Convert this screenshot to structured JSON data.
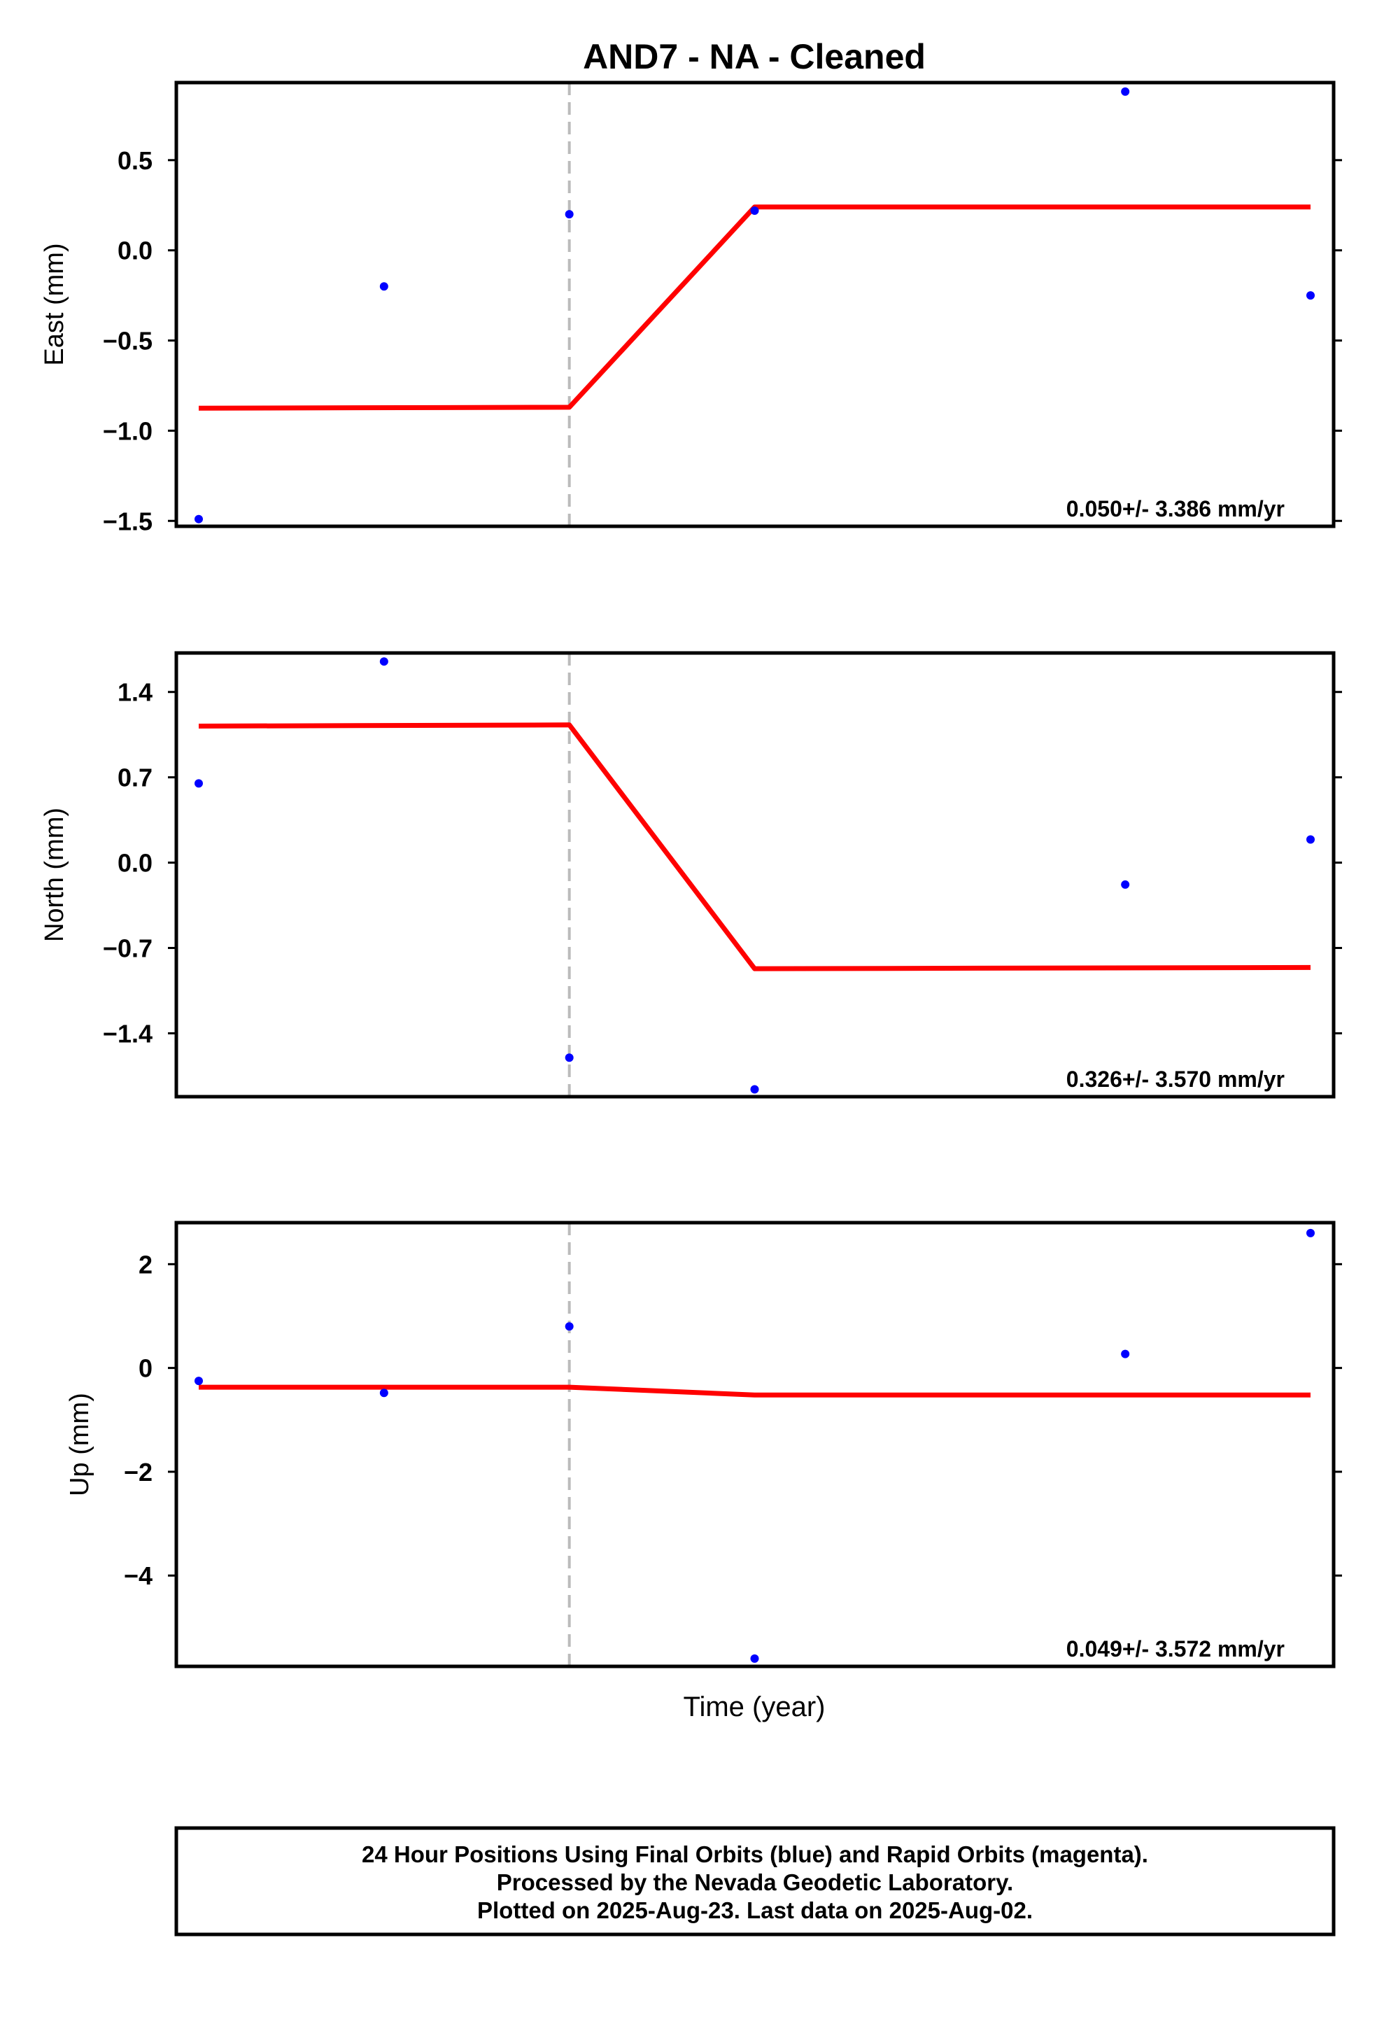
{
  "chart_data": {
    "type": "scatter",
    "title": "AND7  - NA - Cleaned",
    "xlabel": "Time (year)",
    "xlim": [
      0,
      6.2
    ],
    "event_line_x": 2.0,
    "colors": {
      "points": "#0000ff",
      "fit": "#ff0000",
      "event": "#bbbbbb",
      "frame": "#000000"
    },
    "panels": [
      {
        "name": "east",
        "ylabel": "East (mm)",
        "ylim": [
          -1.53,
          0.93
        ],
        "ticks": [
          0.5,
          0.0,
          -0.5,
          -1.0,
          -1.5
        ],
        "tick_labels": [
          "0.5",
          "0.0",
          "−0.5",
          "−1.0",
          "−1.5"
        ],
        "rate_text": "0.050+/- 3.386 mm/yr",
        "points": [
          {
            "x": 0.0,
            "y": -1.49
          },
          {
            "x": 1.0,
            "y": -0.2
          },
          {
            "x": 2.0,
            "y": 0.2
          },
          {
            "x": 3.0,
            "y": 0.22
          },
          {
            "x": 5.0,
            "y": 0.88
          },
          {
            "x": 6.0,
            "y": -0.25
          }
        ],
        "fit": [
          {
            "x": 0.0,
            "y": -0.875
          },
          {
            "x": 2.0,
            "y": -0.87
          },
          {
            "x": 3.0,
            "y": 0.24
          },
          {
            "x": 6.0,
            "y": 0.24
          }
        ]
      },
      {
        "name": "north",
        "ylabel": "North (mm)",
        "ylim": [
          -1.92,
          1.72
        ],
        "ticks": [
          1.4,
          0.7,
          0.0,
          -0.7,
          -1.4
        ],
        "tick_labels": [
          "1.4",
          "0.7",
          "0.0",
          "−0.7",
          "−1.4"
        ],
        "rate_text": "0.326+/- 3.570 mm/yr",
        "points": [
          {
            "x": 0.0,
            "y": 0.65
          },
          {
            "x": 1.0,
            "y": 1.65
          },
          {
            "x": 2.0,
            "y": -1.6
          },
          {
            "x": 3.0,
            "y": -1.86
          },
          {
            "x": 5.0,
            "y": -0.18
          },
          {
            "x": 6.0,
            "y": 0.19
          }
        ],
        "fit": [
          {
            "x": 0.0,
            "y": 1.12
          },
          {
            "x": 2.0,
            "y": 1.13
          },
          {
            "x": 3.0,
            "y": -0.87
          },
          {
            "x": 6.0,
            "y": -0.86
          }
        ]
      },
      {
        "name": "up",
        "ylabel": "Up (mm)",
        "ylim": [
          -5.75,
          2.8
        ],
        "ticks": [
          2,
          0,
          -2,
          -4
        ],
        "tick_labels": [
          "2",
          "0",
          "−2",
          "−4"
        ],
        "rate_text": "0.049+/- 3.572 mm/yr",
        "points": [
          {
            "x": 0.0,
            "y": -0.25
          },
          {
            "x": 1.0,
            "y": -0.48
          },
          {
            "x": 2.0,
            "y": 0.8
          },
          {
            "x": 3.0,
            "y": -5.6
          },
          {
            "x": 5.0,
            "y": 0.27
          },
          {
            "x": 6.0,
            "y": 2.6
          }
        ],
        "fit": [
          {
            "x": 0.0,
            "y": -0.37
          },
          {
            "x": 2.0,
            "y": -0.37
          },
          {
            "x": 3.0,
            "y": -0.52
          },
          {
            "x": 6.0,
            "y": -0.52
          }
        ]
      }
    ]
  },
  "footer": {
    "lines": [
      "24 Hour Positions Using Final Orbits (blue) and Rapid Orbits (magenta).",
      "Processed by the Nevada Geodetic Laboratory.",
      "Plotted on 2025-Aug-23. Last data on 2025-Aug-02."
    ]
  }
}
